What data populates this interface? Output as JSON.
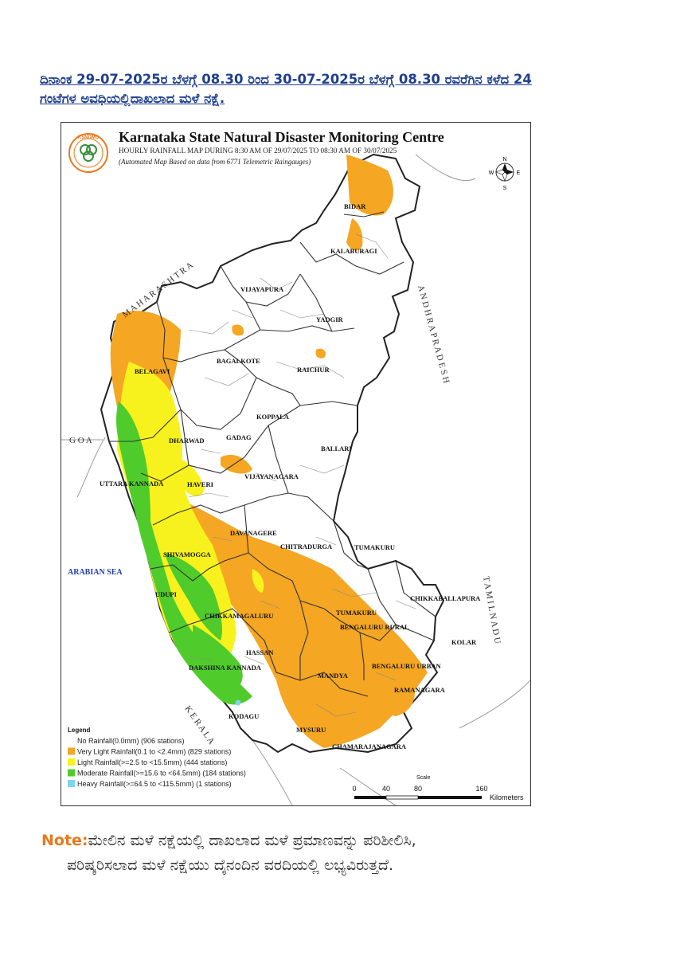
{
  "heading": {
    "line1": "ದಿನಾಂಕ 29-07-2025ರ ಬೆಳಗ್ಗೆ 08.30 ರಿಂದ 30-07-2025ರ ಬೆಳಗ್ಗೆ 08.30 ರವರೆಗಿನ ಕಳೆದ 24",
    "line2": "ಗಂಟೆಗಳ ಅವಧಿಯಲ್ಲಿದಾಖಲಾದ ಮಳೆ ನಕ್ಷೆ."
  },
  "map": {
    "logo_text": "KSNDMC",
    "title": "Karnataka State Natural Disaster Monitoring Centre",
    "subtitle": "HOURLY RAINFALL MAP DURING 8:30 AM OF 29/07/2025 TO 08:30 AM OF 30/07/2025",
    "subtitle2": "(Automated Map Based on data from 6771 Telemetric Raingauges)",
    "compass": {
      "n": "N",
      "s": "S",
      "e": "E",
      "w": "W"
    },
    "neighbors": {
      "maharashtra": "M A H A R A S H T R A",
      "andhra": "A N D H R A   P R A D E S H",
      "goa": "G O A",
      "arabian_sea": "ARABIAN SEA",
      "kerala": "K E R A L A",
      "tamil_nadu": "T A M I L   N A D U"
    },
    "districts": {
      "bidar": "BIDAR",
      "kalaburagi": "KALABURAGI",
      "vijayapura": "VIJAYAPURA",
      "yadgir": "YADGIR",
      "belagavi": "BELAGAVI",
      "bagalkote": "BAGALKOTE",
      "raichur": "RAICHUR",
      "koppala": "KOPPALA",
      "dharwad": "DHARWAD",
      "gadag": "GADAG",
      "ballari": "BALLARI",
      "uttara_kannada": "UTTARA KANNADA",
      "haveri": "HAVERI",
      "vijayanagara": "VIJAYANAGARA",
      "davanagere": "DAVANAGERE",
      "chitradurga": "CHITRADURGA",
      "tumakuru1": "TUMAKURU",
      "shivamogga": "SHIVAMOGGA",
      "udupi": "UDUPI",
      "chikkaballapura": "CHIKKABALLAPURA",
      "chikkamagaluru": "CHIKKAMAGALURU",
      "tumakuru2": "TUMAKURU",
      "bengaluru_rural": "BENGALURU RURAL",
      "kolar": "KOLAR",
      "hassan": "HASSAN",
      "bengaluru_urban": "BENGALURU URBAN",
      "dakshina_kannada": "DAKSHINA KANNADA",
      "mandya": "MANDYA",
      "ramanagara": "RAMANAGARA",
      "kodagu": "KODAGU",
      "mysuru": "MYSURU",
      "chamarajanagara": "CHAMARAJANAGARA"
    },
    "legend": {
      "title": "Legend",
      "items": [
        {
          "label": "No Rainfall(0.0mm) (906 stations)",
          "color": "#ffffff"
        },
        {
          "label": "Very Light Rainfall(0.1 to <2.4mm) (829 stations)",
          "color": "#f5a623"
        },
        {
          "label": "Light Rainfall(>=2.5 to <15.5mm) (444 stations)",
          "color": "#f7f21d"
        },
        {
          "label": "Moderate Rainfall(>=15.6 to <64.5mm) (184 stations)",
          "color": "#4fcc2c"
        },
        {
          "label": "Heavy Rainfall(>=64.5 to <115.5mm) (1 stations)",
          "color": "#7fd3f0"
        }
      ]
    },
    "scale": {
      "title": "Scale",
      "ticks": [
        "0",
        "40",
        "80",
        "160"
      ],
      "unit": "Kilometers"
    }
  },
  "note": {
    "label": "Note:",
    "line1": "ಮೇಲಿನ ಮಳೆ ನಕ್ಷೆಯಲ್ಲಿ ದಾಖಲಾದ ಮಳೆ ಪ್ರಮಾಣವನ್ನು ಪರಿಶೀಲಿಸಿ,",
    "line2": "ಪರಿಷ್ಕರಿಸಲಾದ ಮಳೆ ನಕ್ಷೆಯು ದೈನಂದಿನ ವರದಿಯಲ್ಲಿ ಲಭ್ಯವಿರುತ್ತದೆ."
  }
}
